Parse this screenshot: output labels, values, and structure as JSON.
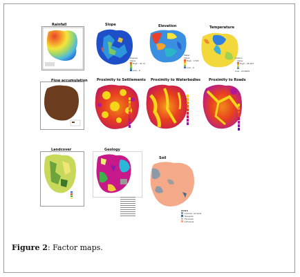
{
  "figure": {
    "caption_label": "Figure 2",
    "caption_text": ": Factor maps."
  },
  "maps": [
    {
      "id": "rainfall",
      "title": "Rainfall"
    },
    {
      "id": "slope",
      "title": "Slope",
      "legend": [
        "Degree",
        "Value",
        "High : 41.71",
        "Low : 0"
      ]
    },
    {
      "id": "elevation",
      "title": "Elevation",
      "legend": [
        "Meter",
        "Value",
        "High : 1792",
        "Low : 0"
      ]
    },
    {
      "id": "temperature",
      "title": "Temperature",
      "legend": [
        "Celsius",
        "Value",
        "High : 26.047",
        "Low : 24.8920"
      ]
    },
    {
      "id": "flow_accumulation",
      "title": "Flow accumulation"
    },
    {
      "id": "proximity_settlements",
      "title": "Proximity to Settlements"
    },
    {
      "id": "proximity_waterbodies",
      "title": "Proximity to Waterbodies"
    },
    {
      "id": "proximity_roads",
      "title": "Proximity to Roads"
    },
    {
      "id": "landcover",
      "title": "Landcover"
    },
    {
      "id": "geology",
      "title": "Geology"
    },
    {
      "id": "soil",
      "title": "Soil",
      "legend": [
        "SOILS",
        "Lixisols, Acrisols",
        "Gleysols",
        "Fluvisols",
        "Lithosols"
      ]
    }
  ],
  "colors": {
    "frame": "#9a9a9a",
    "rainfall_high": "#e8452a",
    "rainfall_low": "#2b7bd8",
    "proximity_hot": "#f5d61a",
    "proximity_mid": "#e8401e",
    "proximity_far": "#b0189a",
    "flow": "#6b3d1e",
    "soil_main": "#f4a989"
  }
}
